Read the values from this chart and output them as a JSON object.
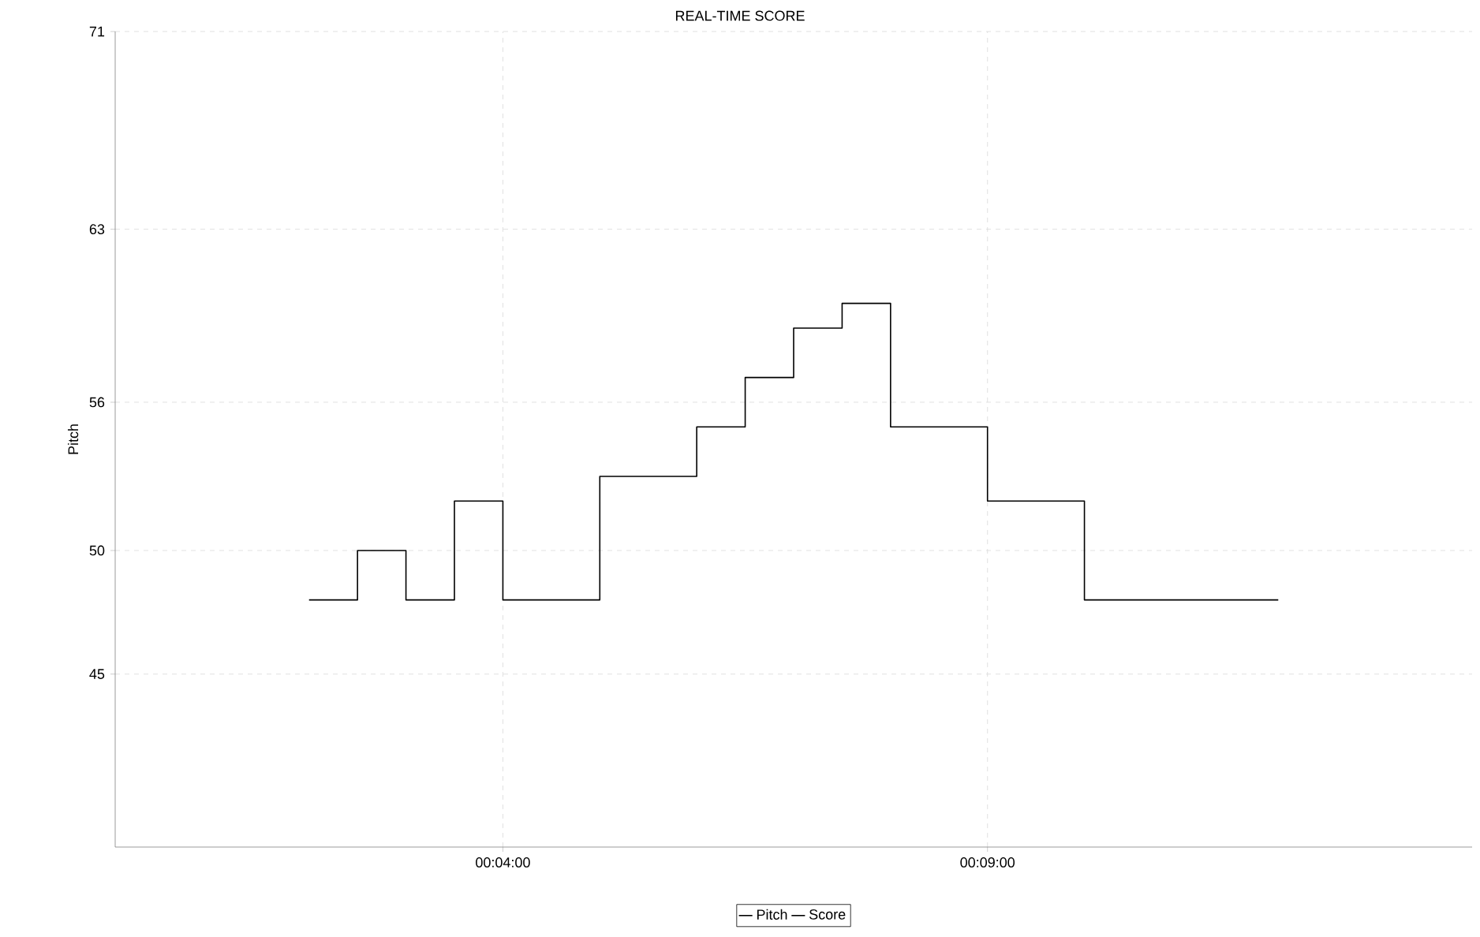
{
  "chart_data": {
    "type": "step",
    "title": "REAL-TIME SCORE",
    "ylabel": "Pitch",
    "x": [
      2.0,
      2.5,
      3.0,
      3.5,
      4.0,
      5.0,
      6.0,
      6.5,
      7.0,
      7.5,
      8.0,
      9.0,
      10.0,
      12.0
    ],
    "series": [
      {
        "name": "Pitch",
        "color": "#000000",
        "values": [
          48,
          50,
          48,
          52,
          48,
          53,
          55,
          57,
          59,
          60,
          55,
          52,
          48,
          48
        ]
      },
      {
        "name": "Score",
        "color": "#000000",
        "values": [
          null,
          null,
          null,
          null,
          null,
          null,
          null,
          null,
          null,
          null,
          null,
          null,
          null,
          null
        ]
      }
    ],
    "xlim": [
      0,
      14
    ],
    "xticks": [
      {
        "value": 4,
        "label": "00:04:00"
      },
      {
        "value": 9,
        "label": "00:09:00"
      }
    ],
    "ylim": [
      38,
      71
    ],
    "yticks": [
      45,
      50,
      56,
      63,
      71
    ],
    "grid": true,
    "legend": "bottom"
  }
}
